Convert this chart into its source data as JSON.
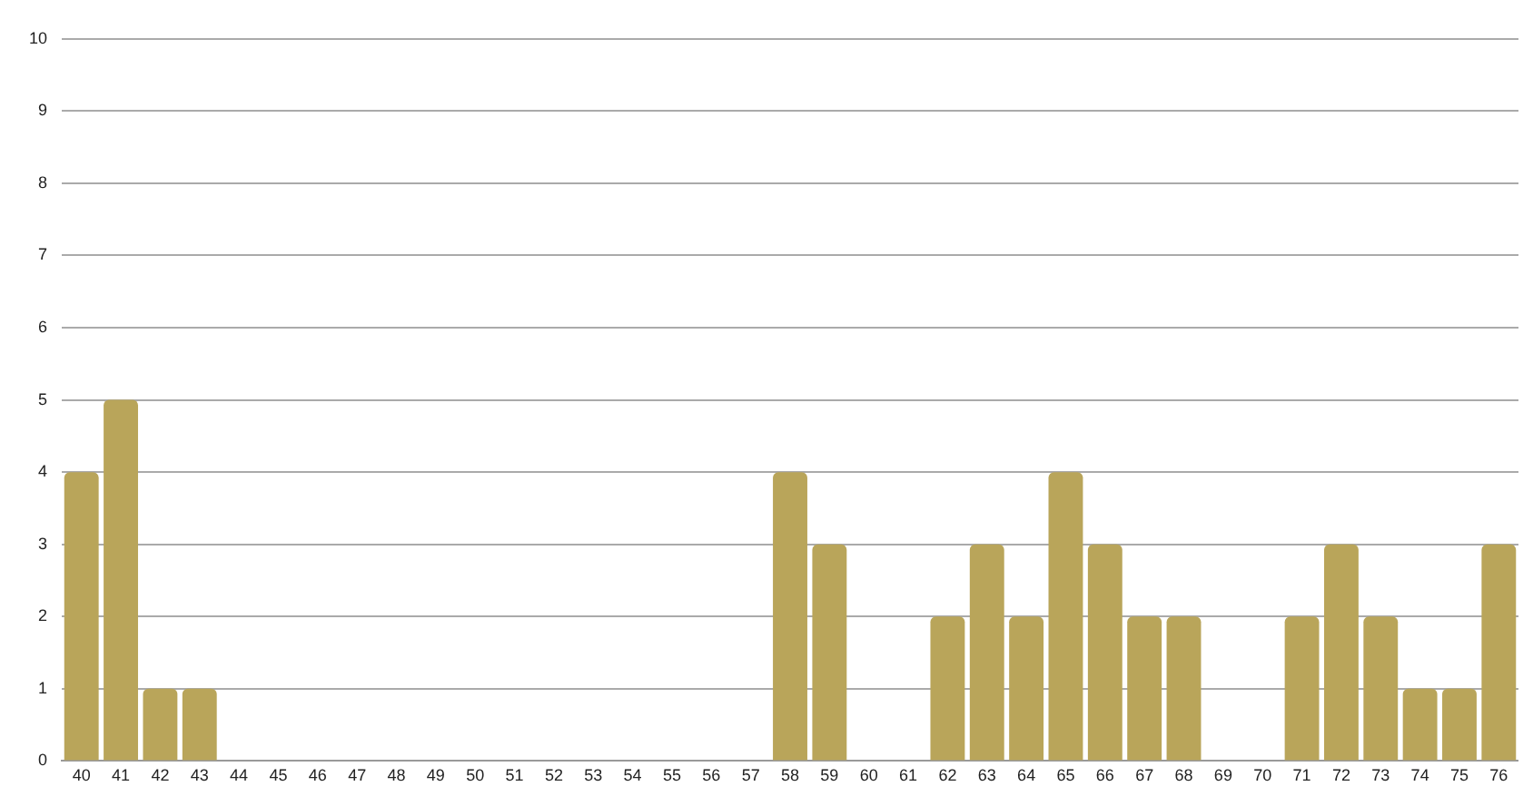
{
  "chart_data": {
    "type": "bar",
    "categories": [
      "40",
      "41",
      "42",
      "43",
      "44",
      "45",
      "46",
      "47",
      "48",
      "49",
      "50",
      "51",
      "52",
      "53",
      "54",
      "55",
      "56",
      "57",
      "58",
      "59",
      "60",
      "61",
      "62",
      "63",
      "64",
      "65",
      "66",
      "67",
      "68",
      "69",
      "70",
      "71",
      "72",
      "73",
      "74",
      "75",
      "76"
    ],
    "values": [
      4,
      5,
      1,
      1,
      0,
      0,
      0,
      0,
      0,
      0,
      0,
      0,
      0,
      0,
      0,
      0,
      0,
      0,
      4,
      3,
      0,
      0,
      2,
      3,
      2,
      4,
      3,
      2,
      2,
      0,
      0,
      2,
      3,
      2,
      1,
      1,
      3
    ],
    "color": "#b9a55a",
    "ylim": [
      0,
      10
    ],
    "yticks": [
      0,
      1,
      2,
      3,
      4,
      5,
      6,
      7,
      8,
      9,
      10
    ],
    "grid": "y",
    "legend": false
  }
}
